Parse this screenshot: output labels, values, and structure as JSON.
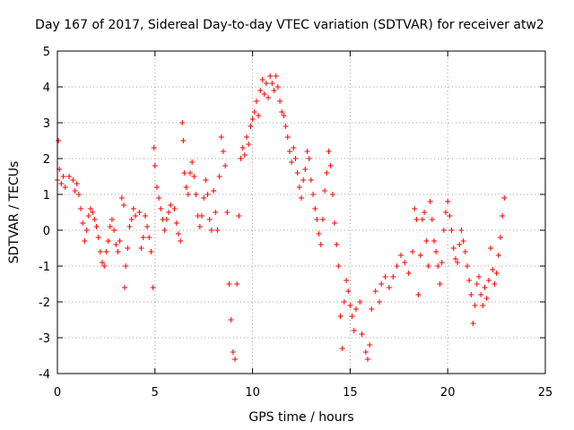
{
  "chart_data": {
    "type": "scatter",
    "title": "Day 167 of 2017, Sidereal Day-to-day VTEC variation (SDTVAR) for receiver atw2",
    "xlabel": "GPS time / hours",
    "ylabel": "SDTVAR / TECUs",
    "xlim": [
      0,
      25
    ],
    "ylim": [
      -4,
      5
    ],
    "xticks": [
      0,
      5,
      10,
      15,
      20,
      25
    ],
    "yticks": [
      -4,
      -3,
      -2,
      -1,
      0,
      1,
      2,
      3,
      4,
      5
    ],
    "xtick_labels": [
      "0",
      "5",
      "10",
      "15",
      "20",
      "25"
    ],
    "ytick_labels": [
      "-4",
      "-3",
      "-2",
      "-1",
      "0",
      "1",
      "2",
      "3",
      "4",
      "5"
    ],
    "grid": true,
    "marker": "+",
    "color": "#ff0000",
    "series": [
      {
        "name": "SDTVAR",
        "points": [
          [
            0.0,
            1.4
          ],
          [
            0.05,
            2.5
          ],
          [
            0.1,
            1.7
          ],
          [
            0.2,
            1.3
          ],
          [
            0.3,
            1.5
          ],
          [
            0.4,
            1.2
          ],
          [
            0.6,
            1.5
          ],
          [
            0.8,
            1.4
          ],
          [
            0.9,
            1.1
          ],
          [
            1.0,
            1.3
          ],
          [
            1.1,
            1.0
          ],
          [
            1.2,
            0.6
          ],
          [
            1.3,
            0.2
          ],
          [
            1.4,
            -0.3
          ],
          [
            1.5,
            0.0
          ],
          [
            1.6,
            0.4
          ],
          [
            1.7,
            0.6
          ],
          [
            1.8,
            0.5
          ],
          [
            1.9,
            0.3
          ],
          [
            2.0,
            0.1
          ],
          [
            2.1,
            -0.2
          ],
          [
            2.2,
            -0.6
          ],
          [
            2.3,
            -0.9
          ],
          [
            2.4,
            -1.0
          ],
          [
            2.5,
            -0.6
          ],
          [
            2.6,
            -0.3
          ],
          [
            2.7,
            0.1
          ],
          [
            2.8,
            0.3
          ],
          [
            2.9,
            0.0
          ],
          [
            3.0,
            -0.4
          ],
          [
            3.1,
            -0.6
          ],
          [
            3.2,
            -0.3
          ],
          [
            3.3,
            0.9
          ],
          [
            3.4,
            0.7
          ],
          [
            3.45,
            -1.6
          ],
          [
            3.5,
            -1.0
          ],
          [
            3.6,
            -0.5
          ],
          [
            3.7,
            0.1
          ],
          [
            3.8,
            0.3
          ],
          [
            3.9,
            0.6
          ],
          [
            4.0,
            0.4
          ],
          [
            4.2,
            0.5
          ],
          [
            4.3,
            -0.5
          ],
          [
            4.4,
            -0.2
          ],
          [
            4.5,
            0.4
          ],
          [
            4.6,
            0.1
          ],
          [
            4.7,
            -0.2
          ],
          [
            4.8,
            -0.6
          ],
          [
            4.9,
            -1.6
          ],
          [
            4.95,
            2.3
          ],
          [
            5.0,
            1.8
          ],
          [
            5.1,
            1.2
          ],
          [
            5.2,
            0.9
          ],
          [
            5.3,
            0.6
          ],
          [
            5.4,
            0.3
          ],
          [
            5.5,
            0.0
          ],
          [
            5.6,
            0.3
          ],
          [
            5.7,
            0.5
          ],
          [
            5.8,
            0.7
          ],
          [
            6.0,
            0.6
          ],
          [
            6.1,
            0.2
          ],
          [
            6.2,
            -0.1
          ],
          [
            6.3,
            -0.3
          ],
          [
            6.4,
            3.0
          ],
          [
            6.45,
            2.5
          ],
          [
            6.5,
            1.6
          ],
          [
            6.6,
            1.2
          ],
          [
            6.7,
            1.0
          ],
          [
            6.8,
            1.6
          ],
          [
            6.9,
            1.9
          ],
          [
            7.0,
            1.5
          ],
          [
            7.1,
            1.0
          ],
          [
            7.2,
            0.4
          ],
          [
            7.3,
            0.1
          ],
          [
            7.4,
            0.4
          ],
          [
            7.5,
            0.9
          ],
          [
            7.6,
            1.4
          ],
          [
            7.7,
            1.0
          ],
          [
            7.8,
            0.3
          ],
          [
            7.9,
            0.0
          ],
          [
            8.0,
            1.1
          ],
          [
            8.1,
            0.5
          ],
          [
            8.2,
            0.0
          ],
          [
            8.3,
            1.5
          ],
          [
            8.4,
            2.6
          ],
          [
            8.5,
            2.2
          ],
          [
            8.6,
            1.8
          ],
          [
            8.7,
            0.5
          ],
          [
            8.8,
            -1.5
          ],
          [
            8.9,
            -2.5
          ],
          [
            9.0,
            -3.4
          ],
          [
            9.1,
            -3.6
          ],
          [
            9.2,
            -1.5
          ],
          [
            9.3,
            0.4
          ],
          [
            9.4,
            2.0
          ],
          [
            9.5,
            2.3
          ],
          [
            9.6,
            2.1
          ],
          [
            9.7,
            2.6
          ],
          [
            9.8,
            2.4
          ],
          [
            9.9,
            2.9
          ],
          [
            10.0,
            3.1
          ],
          [
            10.1,
            3.3
          ],
          [
            10.2,
            3.6
          ],
          [
            10.3,
            3.2
          ],
          [
            10.4,
            3.9
          ],
          [
            10.5,
            4.2
          ],
          [
            10.6,
            3.8
          ],
          [
            10.7,
            4.1
          ],
          [
            10.8,
            3.7
          ],
          [
            10.9,
            4.3
          ],
          [
            11.0,
            4.1
          ],
          [
            11.1,
            3.9
          ],
          [
            11.2,
            4.3
          ],
          [
            11.3,
            4.0
          ],
          [
            11.4,
            3.6
          ],
          [
            11.5,
            3.3
          ],
          [
            11.6,
            3.2
          ],
          [
            11.7,
            2.9
          ],
          [
            11.8,
            2.6
          ],
          [
            11.9,
            2.2
          ],
          [
            12.0,
            1.9
          ],
          [
            12.1,
            2.3
          ],
          [
            12.2,
            2.0
          ],
          [
            12.3,
            1.6
          ],
          [
            12.4,
            1.2
          ],
          [
            12.5,
            0.9
          ],
          [
            12.6,
            1.4
          ],
          [
            12.7,
            1.7
          ],
          [
            12.8,
            2.2
          ],
          [
            12.9,
            2.0
          ],
          [
            13.0,
            1.4
          ],
          [
            13.1,
            1.0
          ],
          [
            13.2,
            0.6
          ],
          [
            13.3,
            0.3
          ],
          [
            13.4,
            -0.1
          ],
          [
            13.5,
            -0.4
          ],
          [
            13.6,
            0.3
          ],
          [
            13.7,
            1.1
          ],
          [
            13.8,
            1.6
          ],
          [
            13.9,
            2.2
          ],
          [
            14.0,
            1.8
          ],
          [
            14.1,
            1.0
          ],
          [
            14.2,
            0.2
          ],
          [
            14.3,
            -0.4
          ],
          [
            14.4,
            -1.0
          ],
          [
            14.5,
            -2.4
          ],
          [
            14.6,
            -3.3
          ],
          [
            14.7,
            -2.0
          ],
          [
            14.8,
            -1.4
          ],
          [
            14.9,
            -1.7
          ],
          [
            15.0,
            -2.1
          ],
          [
            15.1,
            -2.4
          ],
          [
            15.2,
            -2.8
          ],
          [
            15.3,
            -2.2
          ],
          [
            15.5,
            -2.0
          ],
          [
            15.6,
            -2.9
          ],
          [
            15.8,
            -3.4
          ],
          [
            15.9,
            -3.6
          ],
          [
            16.0,
            -3.2
          ],
          [
            16.1,
            -2.2
          ],
          [
            16.3,
            -1.7
          ],
          [
            16.5,
            -2.0
          ],
          [
            16.6,
            -1.5
          ],
          [
            16.8,
            -1.3
          ],
          [
            17.0,
            -1.6
          ],
          [
            17.2,
            -1.3
          ],
          [
            17.4,
            -1.0
          ],
          [
            17.6,
            -0.7
          ],
          [
            17.8,
            -0.9
          ],
          [
            18.0,
            -1.2
          ],
          [
            18.2,
            -0.6
          ],
          [
            18.3,
            0.6
          ],
          [
            18.4,
            0.3
          ],
          [
            18.5,
            -1.8
          ],
          [
            18.6,
            -0.7
          ],
          [
            18.7,
            0.3
          ],
          [
            18.8,
            0.5
          ],
          [
            18.9,
            -0.3
          ],
          [
            19.0,
            -1.0
          ],
          [
            19.1,
            0.8
          ],
          [
            19.2,
            0.3
          ],
          [
            19.3,
            -0.3
          ],
          [
            19.4,
            -0.6
          ],
          [
            19.5,
            -1.0
          ],
          [
            19.6,
            -1.5
          ],
          [
            19.7,
            -0.9
          ],
          [
            19.8,
            0.0
          ],
          [
            19.9,
            0.5
          ],
          [
            20.0,
            0.8
          ],
          [
            20.1,
            0.4
          ],
          [
            20.2,
            0.0
          ],
          [
            20.3,
            -0.5
          ],
          [
            20.4,
            -0.8
          ],
          [
            20.5,
            -0.9
          ],
          [
            20.6,
            -0.4
          ],
          [
            20.7,
            0.0
          ],
          [
            20.8,
            -0.3
          ],
          [
            20.9,
            -0.6
          ],
          [
            21.0,
            -1.0
          ],
          [
            21.1,
            -1.4
          ],
          [
            21.2,
            -1.8
          ],
          [
            21.3,
            -2.6
          ],
          [
            21.4,
            -2.1
          ],
          [
            21.5,
            -1.5
          ],
          [
            21.6,
            -1.3
          ],
          [
            21.7,
            -1.8
          ],
          [
            21.8,
            -2.1
          ],
          [
            21.9,
            -1.6
          ],
          [
            22.0,
            -1.9
          ],
          [
            22.1,
            -1.4
          ],
          [
            22.2,
            -0.5
          ],
          [
            22.3,
            -1.1
          ],
          [
            22.4,
            -1.5
          ],
          [
            22.5,
            -1.2
          ],
          [
            22.6,
            -0.7
          ],
          [
            22.7,
            -0.2
          ],
          [
            22.8,
            0.4
          ],
          [
            22.9,
            0.9
          ]
        ]
      }
    ]
  }
}
